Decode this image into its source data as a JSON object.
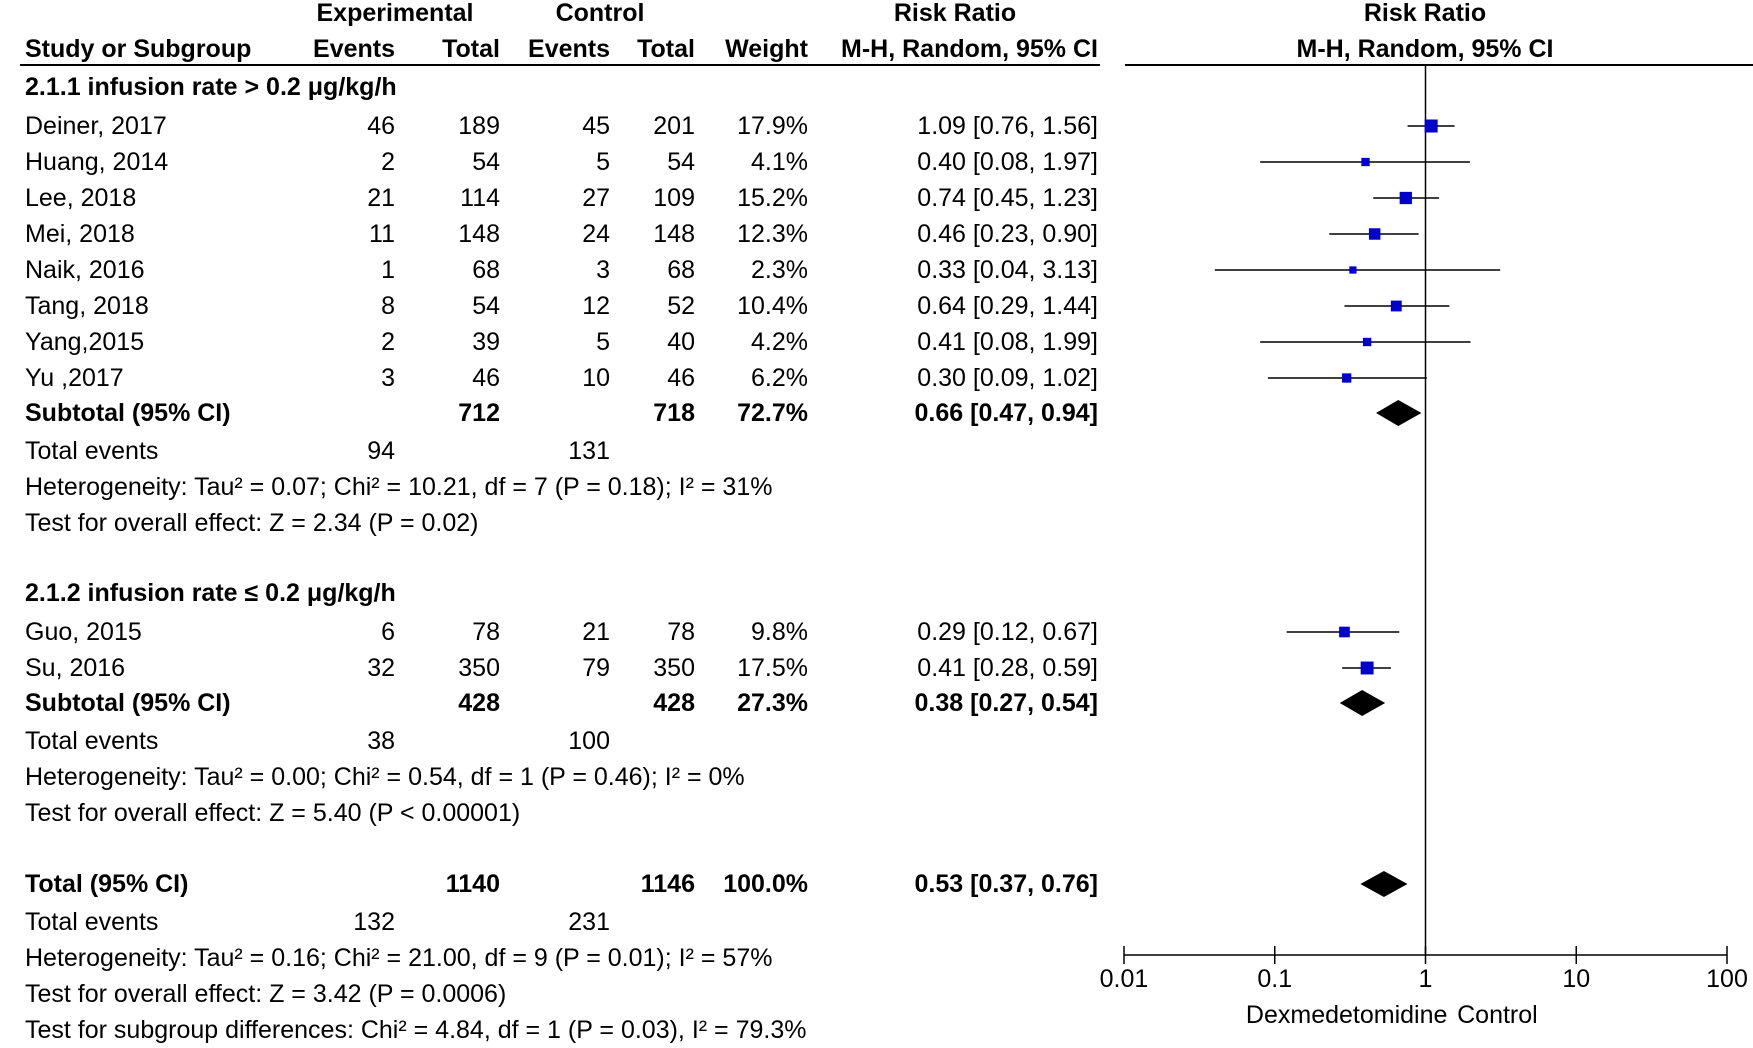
{
  "headers": {
    "experimental": "Experimental",
    "control": "Control",
    "risk_ratio": "Risk Ratio",
    "risk_ratio_plot": "Risk Ratio",
    "study": "Study or Subgroup",
    "events_e": "Events",
    "total_e": "Total",
    "events_c": "Events",
    "total_c": "Total",
    "weight": "Weight",
    "method": "M-H, Random, 95% CI",
    "method_plot": "M-H, Random, 95% CI"
  },
  "subgroup1": {
    "title": "2.1.1 infusion rate > 0.2 μg/kg/h",
    "rows": [
      {
        "study": "Deiner, 2017",
        "ee": "46",
        "et": "189",
        "ce": "45",
        "ct": "201",
        "w": "17.9%",
        "ci": "1.09 [0.76, 1.56]"
      },
      {
        "study": "Huang, 2014",
        "ee": "2",
        "et": "54",
        "ce": "5",
        "ct": "54",
        "w": "4.1%",
        "ci": "0.40 [0.08, 1.97]"
      },
      {
        "study": "Lee, 2018",
        "ee": "21",
        "et": "114",
        "ce": "27",
        "ct": "109",
        "w": "15.2%",
        "ci": "0.74 [0.45, 1.23]"
      },
      {
        "study": "Mei, 2018",
        "ee": "11",
        "et": "148",
        "ce": "24",
        "ct": "148",
        "w": "12.3%",
        "ci": "0.46 [0.23, 0.90]"
      },
      {
        "study": "Naik, 2016",
        "ee": "1",
        "et": "68",
        "ce": "3",
        "ct": "68",
        "w": "2.3%",
        "ci": "0.33 [0.04, 3.13]"
      },
      {
        "study": "Tang, 2018",
        "ee": "8",
        "et": "54",
        "ce": "12",
        "ct": "52",
        "w": "10.4%",
        "ci": "0.64 [0.29, 1.44]"
      },
      {
        "study": "Yang,2015",
        "ee": "2",
        "et": "39",
        "ce": "5",
        "ct": "40",
        "w": "4.2%",
        "ci": "0.41 [0.08, 1.99]"
      },
      {
        "study": "Yu ,2017",
        "ee": "3",
        "et": "46",
        "ce": "10",
        "ct": "46",
        "w": "6.2%",
        "ci": "0.30 [0.09, 1.02]"
      }
    ],
    "subtotal": {
      "label": "Subtotal (95% CI)",
      "et": "712",
      "ct": "718",
      "w": "72.7%",
      "ci": "0.66 [0.47, 0.94]"
    },
    "events": {
      "label": "Total events",
      "ee": "94",
      "ce": "131"
    },
    "heterogeneity": "Heterogeneity: Tau² = 0.07; Chi² = 10.21, df = 7 (P = 0.18); I² = 31%",
    "overall": "Test for overall effect: Z = 2.34 (P = 0.02)"
  },
  "subgroup2": {
    "title": "2.1.2 infusion rate ≤ 0.2 μg/kg/h",
    "rows": [
      {
        "study": "Guo, 2015",
        "ee": "6",
        "et": "78",
        "ce": "21",
        "ct": "78",
        "w": "9.8%",
        "ci": "0.29 [0.12, 0.67]"
      },
      {
        "study": "Su, 2016",
        "ee": "32",
        "et": "350",
        "ce": "79",
        "ct": "350",
        "w": "17.5%",
        "ci": "0.41 [0.28, 0.59]"
      }
    ],
    "subtotal": {
      "label": "Subtotal (95% CI)",
      "et": "428",
      "ct": "428",
      "w": "27.3%",
      "ci": "0.38 [0.27, 0.54]"
    },
    "events": {
      "label": "Total events",
      "ee": "38",
      "ce": "100"
    },
    "heterogeneity": "Heterogeneity: Tau² = 0.00; Chi² = 0.54, df = 1 (P = 0.46); I² = 0%",
    "overall": "Test for overall effect: Z = 5.40 (P < 0.00001)"
  },
  "total": {
    "label": "Total (95% CI)",
    "et": "1140",
    "ct": "1146",
    "w": "100.0%",
    "ci": "0.53 [0.37, 0.76]"
  },
  "total_events": {
    "label": "Total events",
    "ee": "132",
    "ce": "231"
  },
  "total_heterogeneity": "Heterogeneity: Tau² = 0.16; Chi² = 21.00, df = 9 (P = 0.01); I² = 57%",
  "total_overall": "Test for overall effect: Z = 3.42 (P = 0.0006)",
  "subgroup_diff": "Test for subgroup differences: Chi² = 4.84, df = 1 (P = 0.03), I² = 79.3%",
  "colors": {
    "marker": "#0000cc",
    "diamond": "#000000",
    "line": "#000000"
  },
  "chart_data": {
    "type": "forest",
    "x_scale": "log",
    "xlim": [
      0.01,
      100
    ],
    "ticks": [
      0.01,
      0.1,
      1,
      10,
      100
    ],
    "tick_labels": [
      "0.01",
      "0.1",
      "1",
      "10",
      "100"
    ],
    "xlabel_left": "Dexmedetomidine",
    "xlabel_right": "Control",
    "studies": [
      {
        "name": "Deiner, 2017",
        "rr": 1.09,
        "lo": 0.76,
        "hi": 1.56,
        "weight": 17.9
      },
      {
        "name": "Huang, 2014",
        "rr": 0.4,
        "lo": 0.08,
        "hi": 1.97,
        "weight": 4.1
      },
      {
        "name": "Lee, 2018",
        "rr": 0.74,
        "lo": 0.45,
        "hi": 1.23,
        "weight": 15.2
      },
      {
        "name": "Mei, 2018",
        "rr": 0.46,
        "lo": 0.23,
        "hi": 0.9,
        "weight": 12.3
      },
      {
        "name": "Naik, 2016",
        "rr": 0.33,
        "lo": 0.04,
        "hi": 3.13,
        "weight": 2.3
      },
      {
        "name": "Tang, 2018",
        "rr": 0.64,
        "lo": 0.29,
        "hi": 1.44,
        "weight": 10.4
      },
      {
        "name": "Yang,2015",
        "rr": 0.41,
        "lo": 0.08,
        "hi": 1.99,
        "weight": 4.2
      },
      {
        "name": "Yu ,2017",
        "rr": 0.3,
        "lo": 0.09,
        "hi": 1.02,
        "weight": 6.2
      },
      {
        "name": "Guo, 2015",
        "rr": 0.29,
        "lo": 0.12,
        "hi": 0.67,
        "weight": 9.8
      },
      {
        "name": "Su, 2016",
        "rr": 0.41,
        "lo": 0.28,
        "hi": 0.59,
        "weight": 17.5
      }
    ],
    "diamonds": [
      {
        "name": "Subtotal 2.1.1",
        "rr": 0.66,
        "lo": 0.47,
        "hi": 0.94
      },
      {
        "name": "Subtotal 2.1.2",
        "rr": 0.38,
        "lo": 0.27,
        "hi": 0.54
      },
      {
        "name": "Total",
        "rr": 0.53,
        "lo": 0.37,
        "hi": 0.76
      }
    ]
  }
}
